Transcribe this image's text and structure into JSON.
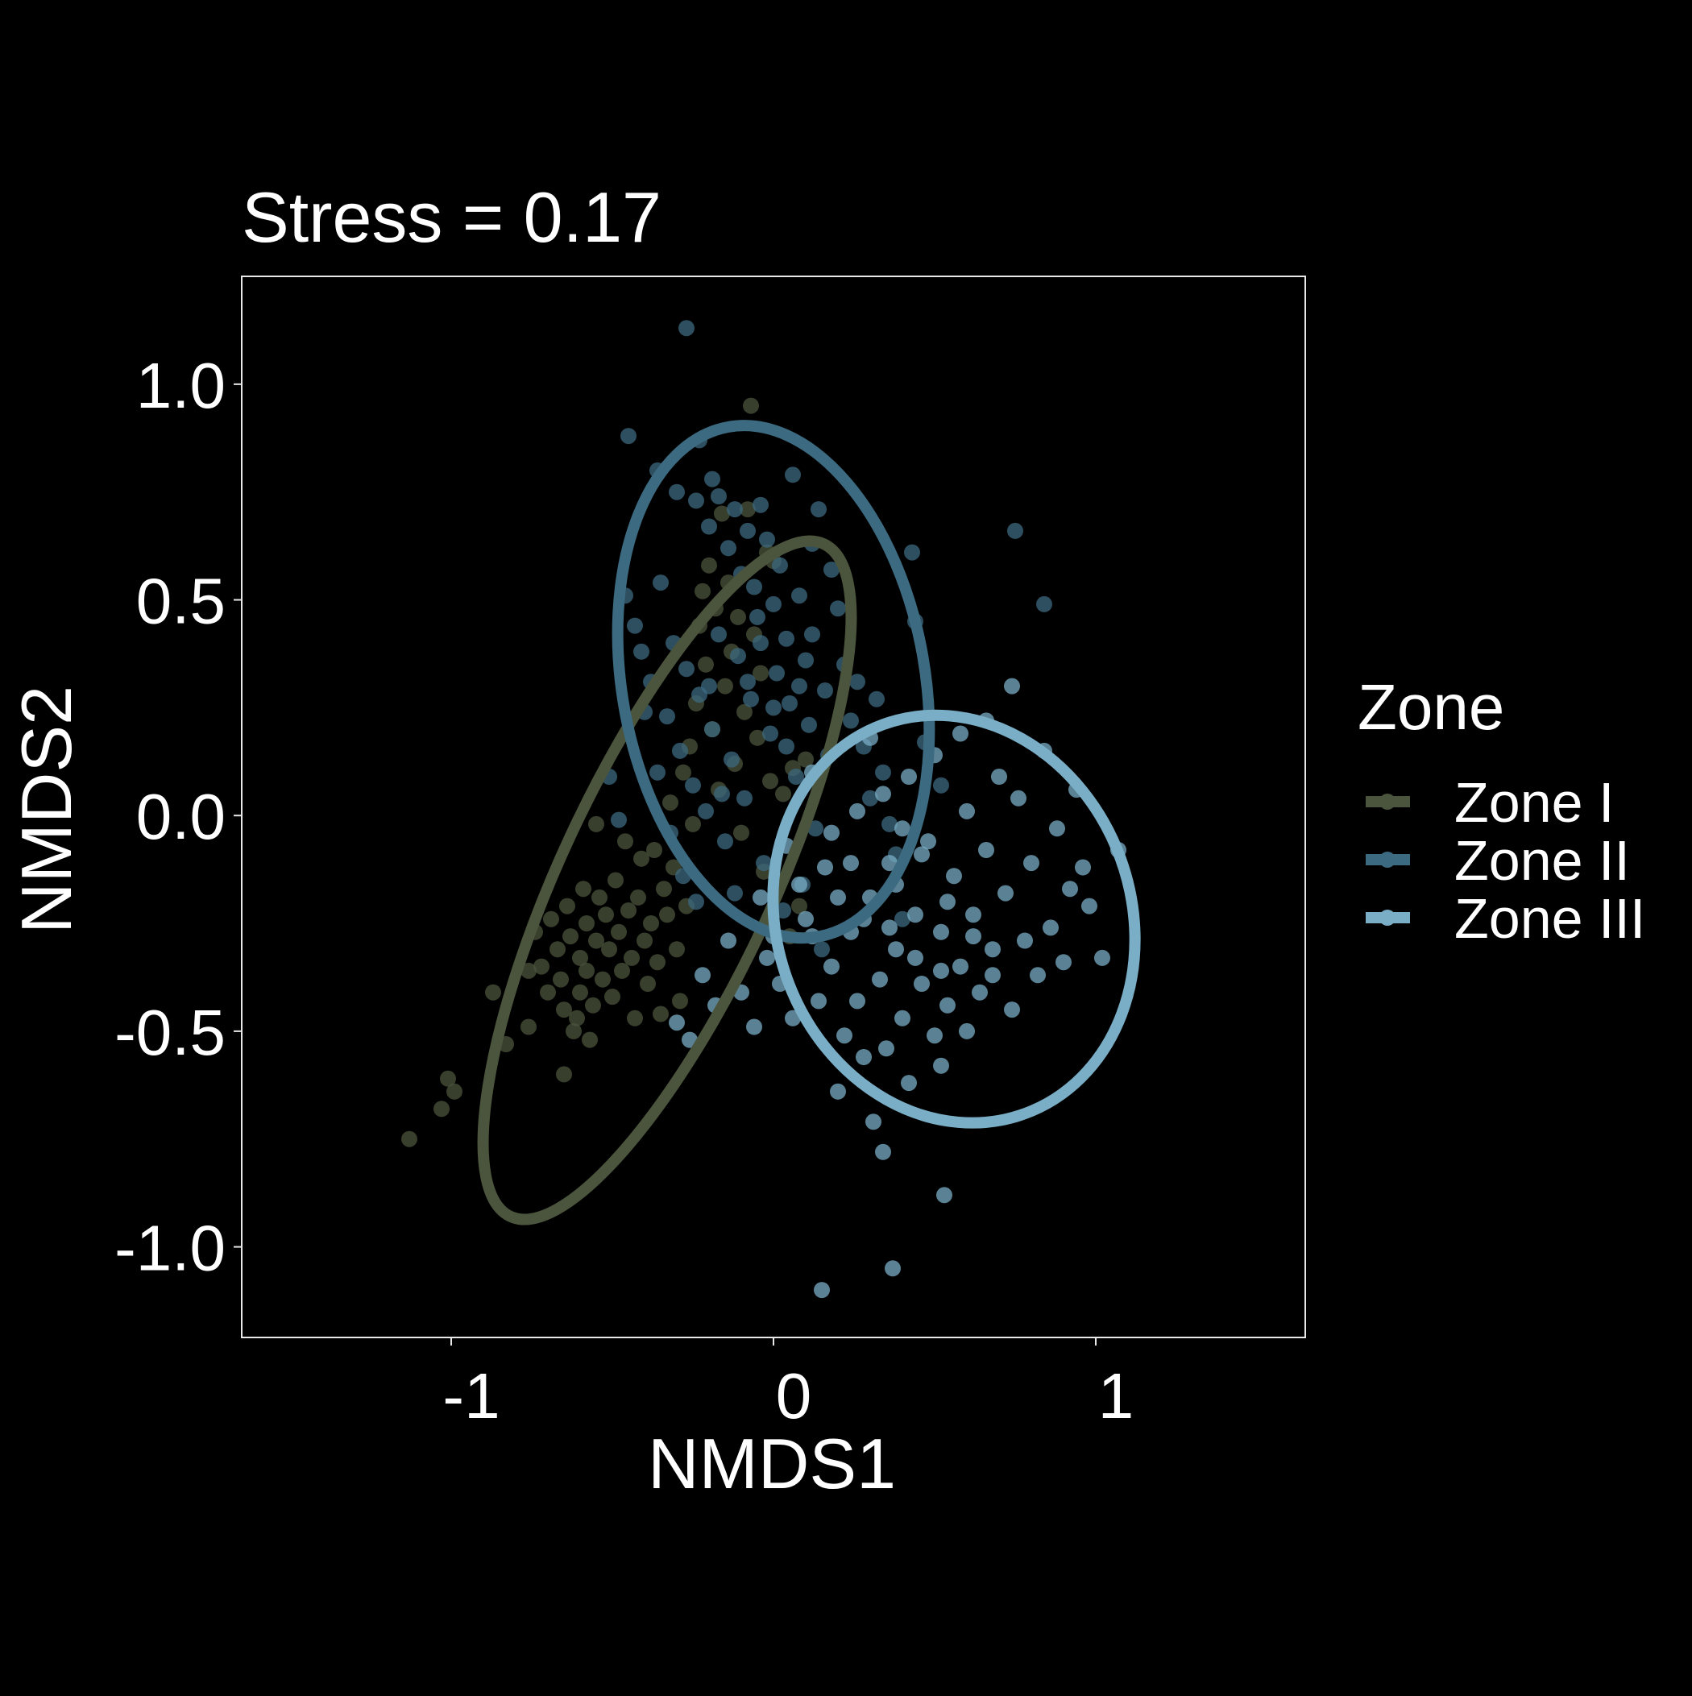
{
  "chart_data": {
    "type": "scatter",
    "title": "Stress = 0.17",
    "xlabel": "NMDS1",
    "ylabel": "NMDS2",
    "xlim": [
      -1.65,
      1.65
    ],
    "ylim": [
      -1.21,
      1.25
    ],
    "x_ticks": [
      -1,
      0,
      1
    ],
    "x_tick_labels": [
      "-1",
      "0",
      "1"
    ],
    "y_ticks": [
      -1.0,
      -0.5,
      0.0,
      0.5,
      1.0
    ],
    "y_tick_labels": [
      "-1.0",
      "-0.5",
      "0.0",
      "0.5",
      "1.0"
    ],
    "grid": false,
    "legend": {
      "title": "Zone",
      "placement": "right"
    },
    "series": [
      {
        "name": "Zone I",
        "color": "#4b543c",
        "points": [
          [
            -1.13,
            -0.75
          ],
          [
            -1.01,
            -0.61
          ],
          [
            -1.03,
            -0.68
          ],
          [
            -0.99,
            -0.64
          ],
          [
            -0.87,
            -0.41
          ],
          [
            -0.83,
            -0.53
          ],
          [
            -0.76,
            -0.49
          ],
          [
            -0.76,
            -0.36
          ],
          [
            -0.74,
            -0.27
          ],
          [
            -0.72,
            -0.35
          ],
          [
            -0.7,
            -0.41
          ],
          [
            -0.69,
            -0.24
          ],
          [
            -0.67,
            -0.31
          ],
          [
            -0.66,
            -0.38
          ],
          [
            -0.65,
            -0.45
          ],
          [
            -0.65,
            -0.6
          ],
          [
            -0.64,
            -0.21
          ],
          [
            -0.63,
            -0.28
          ],
          [
            -0.62,
            -0.5
          ],
          [
            -0.61,
            -0.47
          ],
          [
            -0.6,
            -0.33
          ],
          [
            -0.6,
            -0.41
          ],
          [
            -0.59,
            -0.17
          ],
          [
            -0.58,
            -0.25
          ],
          [
            -0.58,
            -0.36
          ],
          [
            -0.57,
            -0.52
          ],
          [
            -0.56,
            -0.44
          ],
          [
            -0.55,
            -0.29
          ],
          [
            -0.54,
            -0.19
          ],
          [
            -0.53,
            -0.38
          ],
          [
            -0.52,
            -0.23
          ],
          [
            -0.51,
            -0.31
          ],
          [
            -0.5,
            -0.42
          ],
          [
            -0.49,
            -0.15
          ],
          [
            -0.48,
            -0.27
          ],
          [
            -0.47,
            -0.36
          ],
          [
            -0.46,
            -0.06
          ],
          [
            -0.45,
            -0.22
          ],
          [
            -0.44,
            -0.33
          ],
          [
            -0.43,
            -0.47
          ],
          [
            -0.42,
            -0.19
          ],
          [
            -0.41,
            -0.1
          ],
          [
            -0.4,
            -0.29
          ],
          [
            -0.39,
            -0.39
          ],
          [
            -0.38,
            -0.25
          ],
          [
            -0.37,
            -0.08
          ],
          [
            -0.36,
            -0.34
          ],
          [
            -0.35,
            -0.46
          ],
          [
            -0.34,
            -0.17
          ],
          [
            -0.33,
            -0.23
          ],
          [
            -0.32,
            0.03
          ],
          [
            -0.31,
            -0.12
          ],
          [
            -0.3,
            -0.31
          ],
          [
            -0.29,
            -0.43
          ],
          [
            -0.28,
            0.1
          ],
          [
            -0.27,
            -0.21
          ],
          [
            -0.26,
            0.16
          ],
          [
            -0.25,
            -0.02
          ],
          [
            -0.24,
            0.26
          ],
          [
            -0.23,
            0.44
          ],
          [
            -0.22,
            0.52
          ],
          [
            -0.21,
            0.35
          ],
          [
            -0.2,
            0.58
          ],
          [
            -0.19,
            0.2
          ],
          [
            -0.18,
            0.48
          ],
          [
            -0.17,
            0.06
          ],
          [
            -0.16,
            0.7
          ],
          [
            -0.15,
            0.3
          ],
          [
            -0.14,
            0.54
          ],
          [
            -0.13,
            0.38
          ],
          [
            -0.12,
            0.12
          ],
          [
            -0.11,
            0.46
          ],
          [
            -0.1,
            -0.04
          ],
          [
            -0.09,
            0.24
          ],
          [
            -0.08,
            0.71
          ],
          [
            -0.07,
            0.95
          ],
          [
            -0.06,
            0.42
          ],
          [
            -0.05,
            0.18
          ],
          [
            -0.04,
            0.33
          ],
          [
            -0.03,
            -0.13
          ],
          [
            -0.02,
            0.61
          ],
          [
            -0.01,
            0.08
          ],
          [
            0.0,
            0.59
          ],
          [
            0.01,
            -0.17
          ],
          [
            0.03,
            0.05
          ],
          [
            0.05,
            -0.28
          ],
          [
            0.06,
            0.11
          ],
          [
            0.08,
            -0.21
          ],
          [
            0.1,
            0.13
          ],
          [
            -0.55,
            -0.02
          ]
        ]
      },
      {
        "name": "Zone II",
        "color": "#3c6a80",
        "points": [
          [
            -0.45,
            0.88
          ],
          [
            -0.36,
            0.8
          ],
          [
            -0.3,
            0.75
          ],
          [
            -0.27,
            1.13
          ],
          [
            -0.24,
            0.73
          ],
          [
            -0.23,
            0.87
          ],
          [
            -0.2,
            0.67
          ],
          [
            -0.19,
            0.78
          ],
          [
            -0.17,
            0.74
          ],
          [
            -0.14,
            0.62
          ],
          [
            -0.12,
            0.71
          ],
          [
            -0.1,
            0.56
          ],
          [
            -0.08,
            0.66
          ],
          [
            -0.06,
            0.53
          ],
          [
            -0.04,
            0.72
          ],
          [
            -0.02,
            0.64
          ],
          [
            0.0,
            0.49
          ],
          [
            0.02,
            0.58
          ],
          [
            0.04,
            0.41
          ],
          [
            0.06,
            0.79
          ],
          [
            0.08,
            0.51
          ],
          [
            0.1,
            0.36
          ],
          [
            0.12,
            0.63
          ],
          [
            0.14,
            0.71
          ],
          [
            0.16,
            0.29
          ],
          [
            0.18,
            0.57
          ],
          [
            0.2,
            0.48
          ],
          [
            0.22,
            0.35
          ],
          [
            0.24,
            0.22
          ],
          [
            0.26,
            0.31
          ],
          [
            0.28,
            0.16
          ],
          [
            0.3,
            0.04
          ],
          [
            0.32,
            0.27
          ],
          [
            0.34,
            0.1
          ],
          [
            0.36,
            -0.02
          ],
          [
            0.38,
            -0.09
          ],
          [
            0.4,
            -0.24
          ],
          [
            0.43,
            0.61
          ],
          [
            0.44,
            0.45
          ],
          [
            0.47,
            0.17
          ],
          [
            0.52,
            0.07
          ],
          [
            0.75,
            0.66
          ],
          [
            0.84,
            0.49
          ],
          [
            -0.46,
            0.51
          ],
          [
            -0.43,
            0.44
          ],
          [
            -0.41,
            0.38
          ],
          [
            -0.38,
            0.31
          ],
          [
            -0.35,
            0.54
          ],
          [
            -0.33,
            0.23
          ],
          [
            -0.31,
            0.4
          ],
          [
            -0.29,
            0.15
          ],
          [
            -0.27,
            0.34
          ],
          [
            -0.25,
            0.07
          ],
          [
            -0.23,
            0.28
          ],
          [
            -0.21,
            0.01
          ],
          [
            -0.19,
            0.2
          ],
          [
            -0.17,
            0.42
          ],
          [
            -0.15,
            -0.06
          ],
          [
            -0.13,
            0.13
          ],
          [
            -0.11,
            0.37
          ],
          [
            -0.09,
            0.04
          ],
          [
            -0.07,
            0.27
          ],
          [
            -0.05,
            0.46
          ],
          [
            -0.03,
            -0.11
          ],
          [
            -0.01,
            0.19
          ],
          [
            0.01,
            0.33
          ],
          [
            0.03,
            -0.22
          ],
          [
            0.05,
            0.26
          ],
          [
            0.07,
            0.09
          ],
          [
            0.09,
            -0.16
          ],
          [
            0.11,
            0.21
          ],
          [
            0.13,
            -0.03
          ],
          [
            0.15,
            -0.31
          ],
          [
            0.17,
            0.14
          ],
          [
            -0.4,
            0.24
          ],
          [
            -0.36,
            0.1
          ],
          [
            -0.32,
            -0.04
          ],
          [
            -0.28,
            -0.14
          ],
          [
            -0.24,
            -0.2
          ],
          [
            -0.2,
            0.3
          ],
          [
            -0.16,
            0.05
          ],
          [
            -0.12,
            -0.18
          ],
          [
            -0.08,
            0.31
          ],
          [
            -0.04,
            0.4
          ],
          [
            0.0,
            0.25
          ],
          [
            0.04,
            0.16
          ],
          [
            0.08,
            0.3
          ],
          [
            0.12,
            0.42
          ],
          [
            -0.51,
            0.09
          ],
          [
            -0.48,
            -0.01
          ]
        ]
      },
      {
        "name": "Zone III",
        "color": "#79aec6",
        "points": [
          [
            -0.3,
            -0.48
          ],
          [
            -0.26,
            -0.52
          ],
          [
            -0.22,
            -0.37
          ],
          [
            -0.18,
            -0.44
          ],
          [
            -0.14,
            -0.29
          ],
          [
            -0.1,
            -0.41
          ],
          [
            -0.06,
            -0.49
          ],
          [
            -0.02,
            -0.33
          ],
          [
            0.02,
            -0.39
          ],
          [
            0.06,
            -0.47
          ],
          [
            0.1,
            -0.24
          ],
          [
            0.14,
            -0.43
          ],
          [
            0.18,
            -0.35
          ],
          [
            0.2,
            -0.64
          ],
          [
            0.22,
            -0.51
          ],
          [
            0.24,
            -0.27
          ],
          [
            0.26,
            -0.43
          ],
          [
            0.28,
            -0.56
          ],
          [
            0.3,
            -0.19
          ],
          [
            0.31,
            -0.71
          ],
          [
            0.33,
            -0.38
          ],
          [
            0.35,
            -0.54
          ],
          [
            0.36,
            -0.11
          ],
          [
            0.38,
            -0.31
          ],
          [
            0.4,
            -0.47
          ],
          [
            0.42,
            -0.62
          ],
          [
            0.44,
            -0.23
          ],
          [
            0.46,
            -0.39
          ],
          [
            0.48,
            -0.06
          ],
          [
            0.5,
            -0.51
          ],
          [
            0.52,
            -0.27
          ],
          [
            0.54,
            -0.44
          ],
          [
            0.56,
            -0.14
          ],
          [
            0.58,
            -0.35
          ],
          [
            0.6,
            0.01
          ],
          [
            0.62,
            -0.23
          ],
          [
            0.64,
            -0.41
          ],
          [
            0.66,
            -0.08
          ],
          [
            0.68,
            -0.31
          ],
          [
            0.7,
            0.09
          ],
          [
            0.72,
            -0.18
          ],
          [
            0.74,
            -0.45
          ],
          [
            0.76,
            0.04
          ],
          [
            0.78,
            -0.29
          ],
          [
            0.8,
            -0.11
          ],
          [
            0.82,
            -0.37
          ],
          [
            0.84,
            0.15
          ],
          [
            0.86,
            -0.26
          ],
          [
            0.88,
            -0.03
          ],
          [
            0.9,
            -0.34
          ],
          [
            0.92,
            -0.17
          ],
          [
            0.94,
            0.06
          ],
          [
            0.96,
            -0.12
          ],
          [
            0.98,
            -0.21
          ],
          [
            1.02,
            -0.33
          ],
          [
            1.07,
            -0.08
          ],
          [
            0.74,
            0.3
          ],
          [
            0.66,
            0.22
          ],
          [
            0.58,
            0.19
          ],
          [
            0.5,
            0.14
          ],
          [
            0.42,
            0.09
          ],
          [
            0.34,
            0.05
          ],
          [
            0.26,
            0.01
          ],
          [
            0.18,
            -0.04
          ],
          [
            0.12,
            0.1
          ],
          [
            0.3,
            0.18
          ],
          [
            0.38,
            -0.16
          ],
          [
            0.46,
            -0.09
          ],
          [
            0.54,
            -0.2
          ],
          [
            0.62,
            -0.28
          ],
          [
            0.34,
            -0.78
          ],
          [
            0.53,
            -0.88
          ],
          [
            0.37,
            -1.05
          ],
          [
            0.15,
            -1.1
          ],
          [
            0.52,
            -0.58
          ],
          [
            0.6,
            -0.5
          ],
          [
            0.68,
            -0.37
          ],
          [
            0.24,
            -0.11
          ],
          [
            0.2,
            -0.19
          ],
          [
            0.16,
            -0.12
          ],
          [
            0.28,
            -0.24
          ],
          [
            0.36,
            -0.26
          ],
          [
            0.44,
            -0.33
          ],
          [
            0.52,
            -0.36
          ],
          [
            0.08,
            -0.16
          ],
          [
            0.04,
            -0.07
          ],
          [
            0.0,
            -0.28
          ],
          [
            -0.04,
            -0.19
          ],
          [
            0.12,
            -0.28
          ],
          [
            0.4,
            -0.03
          ]
        ]
      }
    ],
    "ellipses": [
      {
        "series": "Zone I",
        "cx": -0.33,
        "cy": -0.15,
        "rx": 0.33,
        "ry": 0.86,
        "angle": 25
      },
      {
        "series": "Zone II",
        "cx": 0.0,
        "cy": 0.31,
        "rx": 0.47,
        "ry": 0.6,
        "angle": -10
      },
      {
        "series": "Zone III",
        "cx": 0.56,
        "cy": -0.24,
        "rx": 0.55,
        "ry": 0.48,
        "angle": -20
      }
    ]
  }
}
